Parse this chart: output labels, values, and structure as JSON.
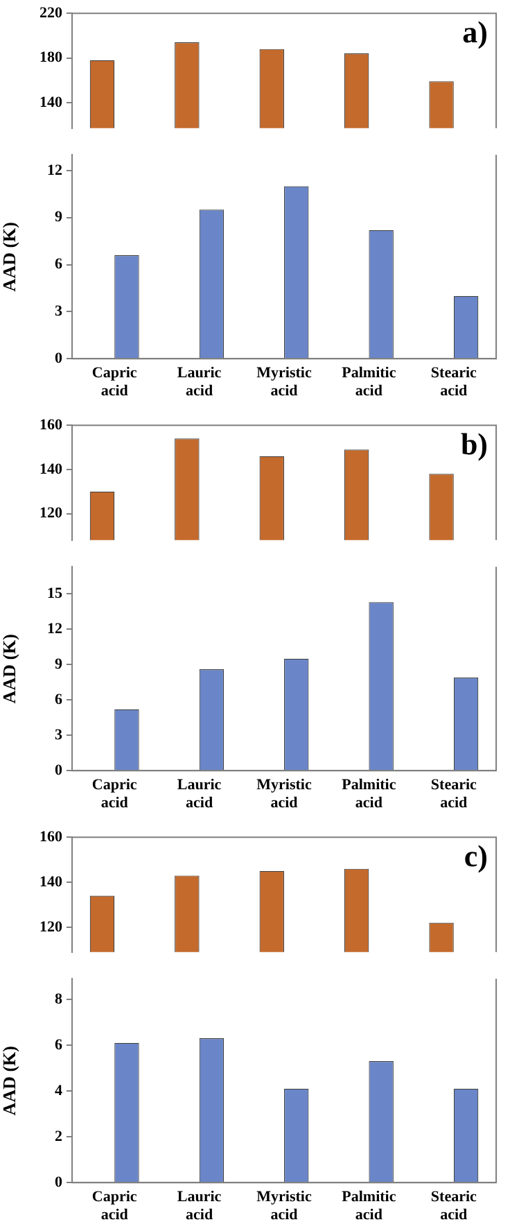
{
  "chart_data": [
    {
      "type": "bar",
      "categories": [
        null,
        null,
        null,
        null,
        null
      ],
      "series": [
        {
          "color": "#c46a2c",
          "values": [
            178,
            194,
            188,
            184,
            159
          ]
        },
        {
          "color": "#6a86c8",
          "values": [
            null,
            null,
            null,
            null,
            null
          ]
        }
      ],
      "ylim": [
        117,
        220
      ],
      "yticks": [
        140,
        180,
        220
      ],
      "tick_labels": "y",
      "annotations": [
        "a)"
      ]
    },
    {
      "type": "bar",
      "ylabel": "AAD (K)",
      "categories": [
        "Capric acid",
        "Lauric acid",
        "Myristic acid",
        "Palmitic acid",
        "Stearic acid"
      ],
      "series": [
        {
          "color": "#c46a2c",
          "values": [
            null,
            null,
            null,
            null,
            null
          ]
        },
        {
          "color": "#6a86c8",
          "values": [
            6.6,
            9.5,
            11.0,
            8.2,
            4.0
          ]
        }
      ],
      "ylim": [
        0,
        13
      ],
      "yticks": [
        0,
        3,
        6,
        9,
        12
      ]
    },
    {
      "type": "bar",
      "categories": [
        null,
        null,
        null,
        null,
        null
      ],
      "series": [
        {
          "color": "#c46a2c",
          "values": [
            130,
            154,
            146,
            149,
            138
          ]
        },
        {
          "color": "#6a86c8",
          "values": [
            null,
            null,
            null,
            null,
            null
          ]
        }
      ],
      "ylim": [
        108,
        160
      ],
      "yticks": [
        120,
        140,
        160
      ],
      "tick_labels": "y",
      "annotations": [
        "b)"
      ]
    },
    {
      "type": "bar",
      "ylabel": "AAD (K)",
      "categories": [
        "Capric acid",
        "Lauric acid",
        "Myristic acid",
        "Palmitic acid",
        "Stearic acid"
      ],
      "series": [
        {
          "color": "#c46a2c",
          "values": [
            null,
            null,
            null,
            null,
            null
          ]
        },
        {
          "color": "#6a86c8",
          "values": [
            5.2,
            8.6,
            9.5,
            14.3,
            7.9
          ]
        }
      ],
      "ylim": [
        0,
        17.3
      ],
      "yticks": [
        0,
        3,
        6,
        9,
        12,
        15
      ]
    },
    {
      "type": "bar",
      "categories": [
        null,
        null,
        null,
        null,
        null
      ],
      "series": [
        {
          "color": "#c46a2c",
          "values": [
            134,
            143,
            145,
            146,
            122
          ]
        },
        {
          "color": "#6a86c8",
          "values": [
            null,
            null,
            null,
            null,
            null
          ]
        }
      ],
      "ylim": [
        109,
        160
      ],
      "yticks": [
        120,
        140,
        160
      ],
      "tick_labels": "y",
      "annotations": [
        "c)"
      ]
    },
    {
      "type": "bar",
      "ylabel": "AAD (K)",
      "categories": [
        "Capric acid",
        "Lauric acid",
        "Myristic acid",
        "Palmitic acid",
        "Stearic acid"
      ],
      "series": [
        {
          "color": "#c46a2c",
          "values": [
            null,
            null,
            null,
            null,
            null
          ]
        },
        {
          "color": "#6a86c8",
          "values": [
            6.1,
            6.3,
            4.1,
            5.3,
            4.1
          ]
        }
      ],
      "ylim": [
        0,
        8.9
      ],
      "yticks": [
        0,
        2,
        4,
        6,
        8
      ]
    }
  ]
}
